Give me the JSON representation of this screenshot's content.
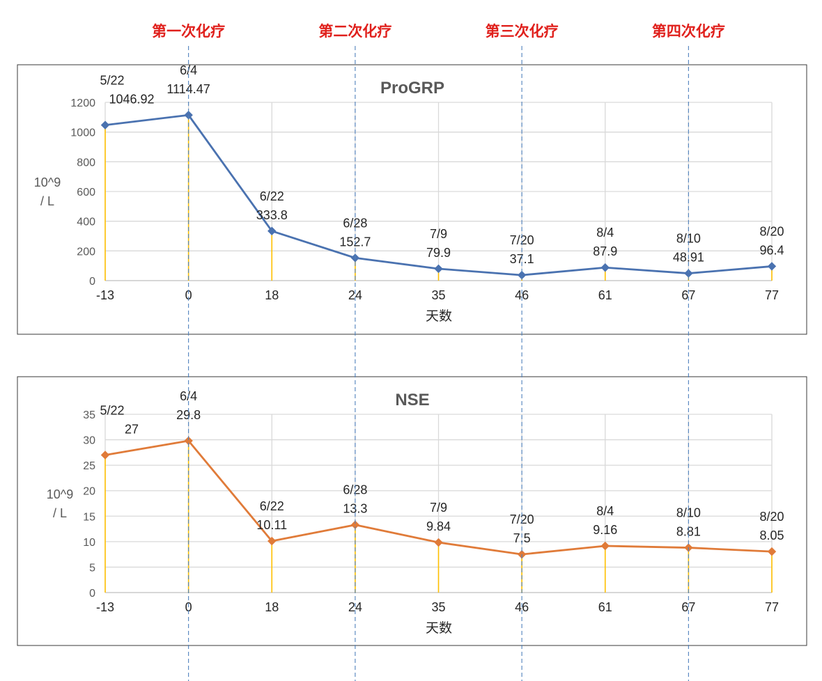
{
  "cycles": [
    "第一次化疗",
    "第二次化疗",
    "第三次化疗",
    "第四次化疗"
  ],
  "cycle_days": [
    0,
    24,
    46,
    67
  ],
  "colors": {
    "progrp": "#4a72b0",
    "nse": "#e07b39",
    "stem": "#ffc000",
    "guide": "#4f81bd",
    "cycle_text": "#e0201c"
  },
  "chart_data": [
    {
      "type": "line",
      "title": "ProGRP",
      "categories": [
        "-13",
        "0",
        "18",
        "24",
        "35",
        "46",
        "61",
        "67",
        "77"
      ],
      "dates": [
        "5/22",
        "6/4",
        "6/22",
        "6/28",
        "7/9",
        "7/20",
        "8/4",
        "8/10",
        "8/20"
      ],
      "values": [
        1046.92,
        1114.47,
        333.8,
        152.7,
        79.9,
        37.1,
        87.9,
        48.91,
        96.4
      ],
      "value_labels": [
        "1046.92",
        "1114.47",
        "333.8",
        "152.7",
        "79.9",
        "37.1",
        "87.9",
        "48.91",
        "96.4"
      ],
      "ylim": [
        0,
        1200
      ],
      "yticks": [
        "0",
        "200",
        "400",
        "600",
        "800",
        "1000",
        "1200"
      ],
      "ylabel_lines": [
        "10^9",
        "/ L"
      ],
      "xlabel": "天数",
      "marker": "diamond",
      "legend": "none"
    },
    {
      "type": "line",
      "title": "NSE",
      "categories": [
        "-13",
        "0",
        "18",
        "24",
        "35",
        "46",
        "61",
        "67",
        "77"
      ],
      "dates": [
        "5/22",
        "6/4",
        "6/22",
        "6/28",
        "7/9",
        "7/20",
        "8/4",
        "8/10",
        "8/20"
      ],
      "values": [
        27,
        29.8,
        10.11,
        13.3,
        9.84,
        7.5,
        9.16,
        8.81,
        8.05
      ],
      "value_labels": [
        "27",
        "29.8",
        "10.11",
        "13.3",
        "9.84",
        "7.5",
        "9.16",
        "8.81",
        "8.05"
      ],
      "ylim": [
        0,
        35
      ],
      "yticks": [
        "0",
        "5",
        "10",
        "15",
        "20",
        "25",
        "30",
        "35"
      ],
      "ylabel_lines": [
        "10^9",
        "/ L"
      ],
      "xlabel": "天数",
      "marker": "diamond",
      "legend": "none"
    }
  ]
}
